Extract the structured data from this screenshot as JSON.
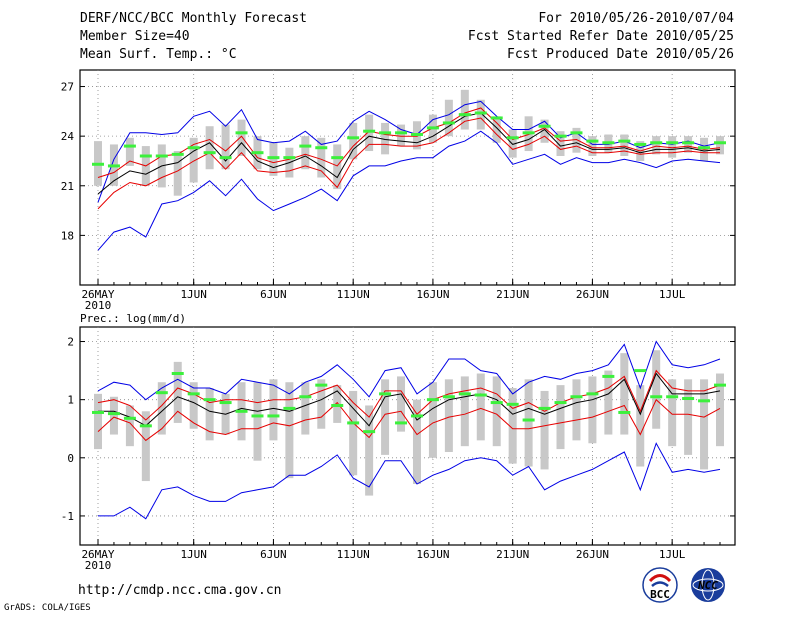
{
  "header": {
    "title": "DERF/NCC/BCC Monthly Forecast",
    "member_size": "Member Size=40",
    "variable": "Mean Surf. Temp.: °C",
    "period": "For 2010/05/26-2010/07/04",
    "start_date": "Fcst Started Refer Date 2010/05/25",
    "produced_date": "Fcst Produced Date 2010/05/26"
  },
  "footer": {
    "url": "http://cmdp.ncc.cma.gov.cn",
    "credit": "GrADS: COLA/IGES",
    "logo_left_text": "BCC",
    "logo_right_text": "NCC"
  },
  "colors": {
    "blue": "#0000e6",
    "red": "#e60000",
    "black": "#000000",
    "green": "#3cf03c",
    "box": "#c8c8c8",
    "grid": "#888888"
  },
  "chart_data": [
    {
      "type": "line",
      "title": "Mean Surf. Temp.: °C",
      "xlabel": "",
      "ylabel": "°C",
      "xlim": [
        0,
        39
      ],
      "ylim": [
        15,
        28
      ],
      "yticks": [
        18,
        21,
        24,
        27
      ],
      "xticks": [
        {
          "day": 0,
          "label": "26MAY"
        },
        {
          "day": 6,
          "label": "1JUN"
        },
        {
          "day": 11,
          "label": "6JUN"
        },
        {
          "day": 16,
          "label": "11JUN"
        },
        {
          "day": 21,
          "label": "16JUN"
        },
        {
          "day": 26,
          "label": "21JUN"
        },
        {
          "day": 31,
          "label": "26JUN"
        },
        {
          "day": 36,
          "label": "1JUL"
        }
      ],
      "year_label": "2010",
      "grid": true,
      "series": [
        {
          "name": "max",
          "color": "blue",
          "values": [
            20.0,
            22.6,
            24.2,
            24.2,
            24.1,
            24.2,
            25.2,
            25.5,
            24.6,
            25.6,
            23.8,
            23.6,
            23.7,
            24.3,
            23.5,
            23.7,
            24.9,
            25.5,
            25.0,
            24.4,
            24.1,
            25.0,
            25.3,
            25.9,
            26.1,
            25.2,
            24.4,
            24.4,
            24.9,
            23.9,
            24.2,
            23.5,
            23.5,
            23.7,
            23.3,
            23.6,
            23.5,
            23.7,
            23.4,
            23.6
          ]
        },
        {
          "name": "upper",
          "color": "red",
          "values": [
            21.5,
            21.8,
            22.5,
            22.2,
            22.8,
            22.9,
            23.5,
            23.8,
            23.1,
            24.0,
            22.7,
            22.4,
            22.6,
            22.9,
            22.6,
            22.2,
            23.4,
            24.3,
            24.1,
            24.0,
            24.0,
            24.5,
            24.8,
            25.4,
            25.7,
            24.8,
            23.8,
            24.1,
            24.5,
            23.7,
            23.8,
            23.3,
            23.3,
            23.4,
            23.1,
            23.4,
            23.3,
            23.4,
            23.2,
            23.3
          ]
        },
        {
          "name": "mean",
          "color": "black",
          "values": [
            20.5,
            21.3,
            21.9,
            21.7,
            22.2,
            22.4,
            23.1,
            23.6,
            22.5,
            23.6,
            22.5,
            22.1,
            22.4,
            22.8,
            22.2,
            21.5,
            23.2,
            24.0,
            23.8,
            23.7,
            23.6,
            24.0,
            24.6,
            25.2,
            25.4,
            24.5,
            23.5,
            23.8,
            24.4,
            23.4,
            23.6,
            23.2,
            23.2,
            23.3,
            23.0,
            23.2,
            23.2,
            23.3,
            23.1,
            23.2
          ]
        },
        {
          "name": "lower",
          "color": "red",
          "values": [
            19.6,
            20.6,
            21.2,
            21.0,
            21.5,
            21.9,
            22.5,
            23.0,
            22.0,
            23.0,
            21.9,
            21.8,
            21.9,
            22.2,
            21.9,
            20.9,
            22.6,
            23.5,
            23.5,
            23.4,
            23.4,
            23.6,
            24.2,
            24.9,
            25.1,
            24.1,
            23.2,
            23.5,
            24.0,
            23.2,
            23.4,
            23.0,
            23.0,
            23.1,
            22.9,
            23.0,
            23.0,
            23.1,
            23.0,
            23.0
          ]
        },
        {
          "name": "min",
          "color": "blue",
          "values": [
            17.1,
            18.2,
            18.5,
            17.9,
            19.9,
            20.1,
            20.6,
            21.3,
            20.4,
            21.4,
            20.2,
            19.5,
            19.9,
            20.3,
            20.8,
            20.1,
            21.6,
            22.2,
            22.2,
            22.5,
            22.7,
            22.7,
            23.4,
            23.7,
            24.3,
            23.6,
            22.3,
            22.6,
            22.9,
            22.3,
            22.7,
            22.4,
            22.4,
            22.6,
            22.4,
            22.1,
            22.5,
            22.6,
            22.5,
            22.4
          ]
        }
      ],
      "boxes": [
        [
          21.0,
          23.7
        ],
        [
          21.0,
          23.5
        ],
        [
          22.2,
          23.9
        ],
        [
          21.0,
          23.4
        ],
        [
          20.9,
          23.5
        ],
        [
          20.4,
          23.1
        ],
        [
          21.2,
          23.9
        ],
        [
          22.0,
          24.6
        ],
        [
          22.0,
          24.7
        ],
        [
          22.8,
          25.0
        ],
        [
          22.0,
          24.0
        ],
        [
          21.6,
          23.6
        ],
        [
          21.5,
          23.3
        ],
        [
          22.0,
          24.0
        ],
        [
          21.5,
          23.9
        ],
        [
          20.8,
          23.5
        ],
        [
          22.6,
          24.8
        ],
        [
          23.1,
          25.3
        ],
        [
          22.9,
          24.8
        ],
        [
          23.4,
          24.7
        ],
        [
          23.2,
          24.9
        ],
        [
          23.6,
          25.3
        ],
        [
          24.0,
          26.2
        ],
        [
          24.4,
          26.8
        ],
        [
          24.4,
          26.2
        ],
        [
          23.6,
          25.2
        ],
        [
          22.7,
          24.4
        ],
        [
          23.1,
          25.2
        ],
        [
          23.6,
          25.0
        ],
        [
          22.8,
          24.3
        ],
        [
          23.0,
          24.5
        ],
        [
          22.8,
          24.0
        ],
        [
          23.0,
          24.1
        ],
        [
          22.8,
          24.1
        ],
        [
          22.5,
          23.7
        ],
        [
          22.9,
          24.0
        ],
        [
          22.7,
          24.0
        ],
        [
          23.0,
          24.0
        ],
        [
          22.5,
          23.9
        ],
        [
          22.9,
          24.0
        ]
      ],
      "observed": [
        22.3,
        22.2,
        23.4,
        22.8,
        22.8,
        22.9,
        23.3,
        23.0,
        22.7,
        24.2,
        23.0,
        22.7,
        22.7,
        23.4,
        23.3,
        22.7,
        23.9,
        24.3,
        24.2,
        24.2,
        24.1,
        24.5,
        24.8,
        25.3,
        25.4,
        25.1,
        23.9,
        24.2,
        24.6,
        24.0,
        24.2,
        23.7,
        23.6,
        23.7,
        23.5,
        23.6,
        23.6,
        23.6,
        23.3,
        23.6
      ]
    },
    {
      "type": "line",
      "title": "Prec.: log(mm/d)",
      "xlabel": "",
      "ylabel": "log(mm/d)",
      "xlim": [
        0,
        39
      ],
      "ylim": [
        -1.5,
        2.25
      ],
      "yticks": [
        -1,
        0,
        1,
        2
      ],
      "xticks": [
        {
          "day": 0,
          "label": "26MAY"
        },
        {
          "day": 6,
          "label": "1JUN"
        },
        {
          "day": 11,
          "label": "6JUN"
        },
        {
          "day": 16,
          "label": "11JUN"
        },
        {
          "day": 21,
          "label": "16JUN"
        },
        {
          "day": 26,
          "label": "21JUN"
        },
        {
          "day": 31,
          "label": "26JUN"
        },
        {
          "day": 36,
          "label": "1JUL"
        }
      ],
      "year_label": "2010",
      "grid": true,
      "series": [
        {
          "name": "max",
          "color": "blue",
          "values": [
            1.15,
            1.3,
            1.25,
            1.0,
            1.2,
            1.35,
            1.2,
            1.2,
            1.1,
            1.35,
            1.3,
            1.25,
            1.1,
            1.3,
            1.4,
            1.6,
            1.35,
            1.05,
            1.5,
            1.55,
            1.1,
            1.3,
            1.7,
            1.7,
            1.5,
            1.45,
            1.1,
            1.3,
            1.4,
            1.35,
            1.45,
            1.5,
            1.6,
            1.95,
            1.2,
            2.0,
            1.6,
            1.55,
            1.6,
            1.7
          ]
        },
        {
          "name": "upper",
          "color": "red",
          "values": [
            0.95,
            1.0,
            0.9,
            0.65,
            0.9,
            1.2,
            1.1,
            0.95,
            1.0,
            1.0,
            0.95,
            1.0,
            1.0,
            1.05,
            1.15,
            1.25,
            0.95,
            0.7,
            1.15,
            1.15,
            0.75,
            1.0,
            1.1,
            1.15,
            1.2,
            1.1,
            0.85,
            0.95,
            0.8,
            0.95,
            1.05,
            1.1,
            1.2,
            1.4,
            0.8,
            1.5,
            1.2,
            1.15,
            1.15,
            1.25
          ]
        },
        {
          "name": "mean",
          "color": "black",
          "values": [
            0.8,
            0.8,
            0.7,
            0.55,
            0.8,
            1.05,
            0.95,
            0.8,
            0.75,
            0.85,
            0.8,
            0.85,
            0.8,
            0.9,
            1.0,
            1.15,
            0.85,
            0.55,
            1.05,
            1.1,
            0.65,
            0.85,
            1.0,
            1.05,
            1.1,
            1.0,
            0.75,
            0.85,
            0.75,
            0.85,
            0.95,
            1.0,
            1.1,
            1.35,
            0.75,
            1.45,
            1.1,
            1.1,
            1.1,
            1.15
          ]
        },
        {
          "name": "lower",
          "color": "red",
          "values": [
            0.45,
            0.7,
            0.6,
            0.3,
            0.5,
            0.8,
            0.6,
            0.45,
            0.4,
            0.5,
            0.5,
            0.6,
            0.55,
            0.65,
            0.7,
            0.95,
            0.6,
            0.35,
            0.75,
            0.8,
            0.4,
            0.6,
            0.7,
            0.75,
            0.85,
            0.75,
            0.5,
            0.5,
            0.55,
            0.6,
            0.65,
            0.7,
            0.8,
            0.9,
            0.4,
            1.0,
            0.75,
            0.75,
            0.7,
            0.85
          ]
        },
        {
          "name": "min",
          "color": "blue",
          "values": [
            -1.0,
            -1.0,
            -0.85,
            -1.05,
            -0.55,
            -0.5,
            -0.65,
            -0.75,
            -0.75,
            -0.6,
            -0.55,
            -0.5,
            -0.3,
            -0.3,
            -0.15,
            0.05,
            -0.35,
            -0.5,
            -0.05,
            -0.05,
            -0.45,
            -0.3,
            -0.2,
            -0.05,
            0.0,
            -0.05,
            -0.3,
            -0.15,
            -0.55,
            -0.4,
            -0.3,
            -0.2,
            -0.05,
            0.1,
            -0.55,
            0.25,
            -0.25,
            -0.2,
            -0.25,
            -0.2
          ]
        }
      ],
      "boxes": [
        [
          0.15,
          1.1
        ],
        [
          0.4,
          1.05
        ],
        [
          0.2,
          0.9
        ],
        [
          -0.4,
          0.8
        ],
        [
          0.4,
          1.3
        ],
        [
          0.6,
          1.65
        ],
        [
          0.5,
          1.3
        ],
        [
          0.3,
          1.2
        ],
        [
          0.4,
          1.1
        ],
        [
          0.3,
          1.3
        ],
        [
          -0.05,
          1.3
        ],
        [
          0.3,
          1.35
        ],
        [
          -0.35,
          1.3
        ],
        [
          0.4,
          1.3
        ],
        [
          0.5,
          1.35
        ],
        [
          0.6,
          1.25
        ],
        [
          -0.3,
          1.15
        ],
        [
          -0.65,
          0.9
        ],
        [
          0.05,
          1.35
        ],
        [
          0.45,
          1.4
        ],
        [
          -0.45,
          1.0
        ],
        [
          0.0,
          1.3
        ],
        [
          0.1,
          1.35
        ],
        [
          0.2,
          1.4
        ],
        [
          0.3,
          1.45
        ],
        [
          0.2,
          1.4
        ],
        [
          -0.1,
          1.2
        ],
        [
          -0.15,
          1.35
        ],
        [
          -0.2,
          1.15
        ],
        [
          0.15,
          1.25
        ],
        [
          0.3,
          1.35
        ],
        [
          0.25,
          1.4
        ],
        [
          0.4,
          1.5
        ],
        [
          0.4,
          1.8
        ],
        [
          -0.15,
          1.25
        ],
        [
          0.5,
          1.85
        ],
        [
          0.2,
          1.35
        ],
        [
          0.05,
          1.35
        ],
        [
          -0.2,
          1.35
        ],
        [
          0.2,
          1.45
        ]
      ],
      "observed": [
        0.78,
        0.76,
        0.68,
        0.55,
        1.12,
        1.45,
        1.1,
        1.0,
        0.95,
        0.8,
        0.72,
        0.72,
        0.85,
        1.05,
        1.25,
        0.9,
        0.6,
        0.45,
        1.1,
        0.6,
        0.72,
        1.0,
        1.05,
        1.1,
        1.08,
        0.95,
        0.92,
        0.65,
        0.85,
        0.95,
        1.05,
        1.1,
        1.4,
        0.78,
        1.5,
        1.05,
        1.05,
        1.02,
        0.98,
        1.25
      ]
    }
  ]
}
